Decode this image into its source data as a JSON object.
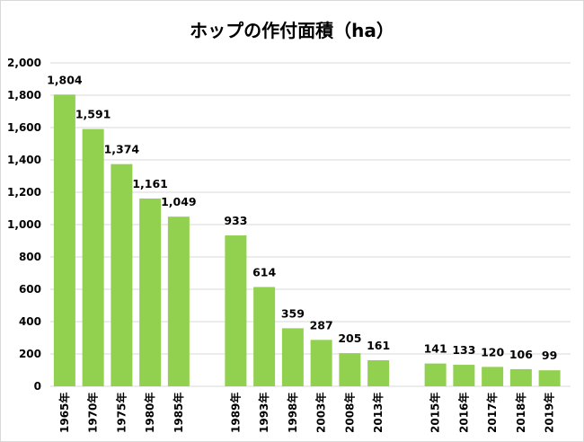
{
  "chart_data": {
    "type": "bar",
    "title": "ホップの作付面積（ha）",
    "xlabel": "",
    "ylabel": "",
    "ylim": [
      0,
      2000
    ],
    "yticks": [
      "0",
      "200",
      "400",
      "600",
      "800",
      "1,000",
      "1,200",
      "1,400",
      "1,600",
      "1,800",
      "2,000"
    ],
    "ytick_values": [
      0,
      200,
      400,
      600,
      800,
      1000,
      1200,
      1400,
      1600,
      1800,
      2000
    ],
    "grid": true,
    "groups": [
      {
        "categories": [
          "1965年",
          "1970年",
          "1975年",
          "1980年",
          "1985年"
        ],
        "values": [
          1804,
          1591,
          1374,
          1161,
          1049
        ],
        "labels": [
          "1,804",
          "1,591",
          "1,374",
          "1,161",
          "1,049"
        ]
      },
      {
        "categories": [
          "1989年",
          "1993年",
          "1998年",
          "2003年",
          "2008年",
          "2013年"
        ],
        "values": [
          933,
          614,
          359,
          287,
          205,
          161
        ],
        "labels": [
          "933",
          "614",
          "359",
          "287",
          "205",
          "161"
        ]
      },
      {
        "categories": [
          "2015年",
          "2016年",
          "2017年",
          "2018年",
          "2019年"
        ],
        "values": [
          141,
          133,
          120,
          106,
          99
        ],
        "labels": [
          "141",
          "133",
          "120",
          "106",
          "99"
        ]
      }
    ],
    "bar_color": "#92d050",
    "grid_color": "#d9d9d9"
  }
}
